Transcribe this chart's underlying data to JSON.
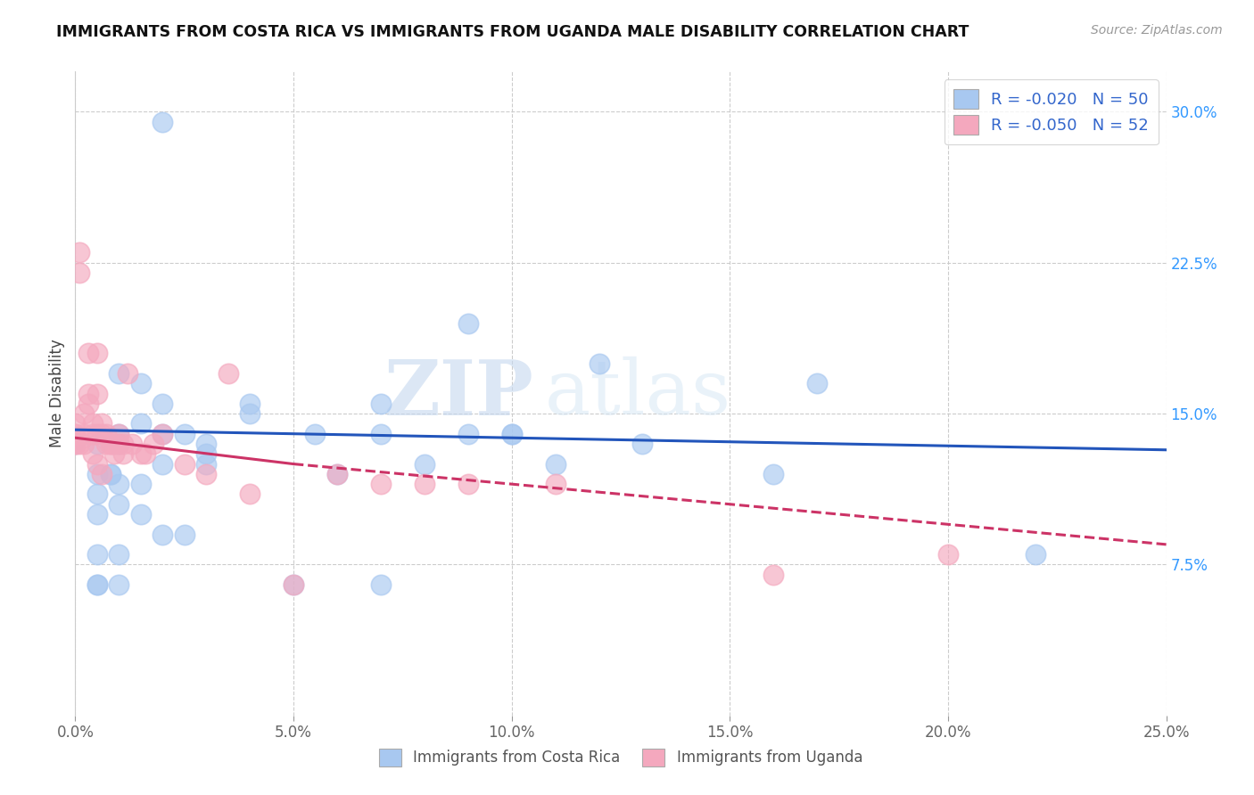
{
  "title": "IMMIGRANTS FROM COSTA RICA VS IMMIGRANTS FROM UGANDA MALE DISABILITY CORRELATION CHART",
  "source": "Source: ZipAtlas.com",
  "ylabel": "Male Disability",
  "xlim": [
    0.0,
    0.25
  ],
  "ylim": [
    0.0,
    0.32
  ],
  "xtick_labels": [
    "0.0%",
    "5.0%",
    "10.0%",
    "15.0%",
    "20.0%",
    "25.0%"
  ],
  "xtick_vals": [
    0.0,
    0.05,
    0.1,
    0.15,
    0.2,
    0.25
  ],
  "ytick_labels": [
    "7.5%",
    "15.0%",
    "22.5%",
    "30.0%"
  ],
  "ytick_vals": [
    0.075,
    0.15,
    0.225,
    0.3
  ],
  "legend_labels": [
    "Immigrants from Costa Rica",
    "Immigrants from Uganda"
  ],
  "R_costa_rica": -0.02,
  "N_costa_rica": 50,
  "R_uganda": -0.05,
  "N_uganda": 52,
  "color_costa_rica": "#a8c8f0",
  "color_uganda": "#f4a8be",
  "trend_color_costa_rica": "#2255bb",
  "trend_color_uganda": "#cc3366",
  "watermark_zip": "ZIP",
  "watermark_atlas": "atlas",
  "background_color": "#ffffff",
  "grid_color": "#cccccc",
  "costa_rica_x": [
    0.02,
    0.09,
    0.12,
    0.17,
    0.0,
    0.01,
    0.02,
    0.005,
    0.01,
    0.015,
    0.005,
    0.008,
    0.04,
    0.055,
    0.07,
    0.09,
    0.1,
    0.005,
    0.01,
    0.008,
    0.015,
    0.02,
    0.03,
    0.06,
    0.08,
    0.11,
    0.16,
    0.005,
    0.01,
    0.015,
    0.02,
    0.025,
    0.03,
    0.05,
    0.07,
    0.005,
    0.01,
    0.015,
    0.02,
    0.025,
    0.03,
    0.005,
    0.01,
    0.22,
    0.005,
    0.01,
    0.13,
    0.1,
    0.07,
    0.04
  ],
  "costa_rica_y": [
    0.295,
    0.195,
    0.175,
    0.165,
    0.135,
    0.135,
    0.14,
    0.135,
    0.14,
    0.145,
    0.12,
    0.12,
    0.155,
    0.14,
    0.155,
    0.14,
    0.14,
    0.11,
    0.115,
    0.12,
    0.115,
    0.125,
    0.125,
    0.12,
    0.125,
    0.125,
    0.12,
    0.1,
    0.105,
    0.1,
    0.09,
    0.09,
    0.13,
    0.065,
    0.065,
    0.065,
    0.17,
    0.165,
    0.155,
    0.14,
    0.135,
    0.08,
    0.08,
    0.08,
    0.065,
    0.065,
    0.135,
    0.14,
    0.14,
    0.15
  ],
  "uganda_x": [
    0.0,
    0.0,
    0.0,
    0.0,
    0.0,
    0.001,
    0.001,
    0.001,
    0.002,
    0.002,
    0.003,
    0.003,
    0.004,
    0.004,
    0.005,
    0.005,
    0.005,
    0.006,
    0.006,
    0.007,
    0.007,
    0.008,
    0.008,
    0.009,
    0.009,
    0.01,
    0.01,
    0.011,
    0.011,
    0.012,
    0.013,
    0.015,
    0.016,
    0.018,
    0.02,
    0.025,
    0.03,
    0.035,
    0.04,
    0.05,
    0.06,
    0.07,
    0.08,
    0.09,
    0.11,
    0.16,
    0.2,
    0.002,
    0.003,
    0.004,
    0.005,
    0.006
  ],
  "uganda_y": [
    0.135,
    0.14,
    0.135,
    0.14,
    0.145,
    0.23,
    0.22,
    0.135,
    0.135,
    0.14,
    0.18,
    0.16,
    0.145,
    0.14,
    0.18,
    0.16,
    0.14,
    0.145,
    0.14,
    0.14,
    0.135,
    0.135,
    0.135,
    0.135,
    0.13,
    0.14,
    0.135,
    0.13,
    0.135,
    0.17,
    0.135,
    0.13,
    0.13,
    0.135,
    0.14,
    0.125,
    0.12,
    0.17,
    0.11,
    0.065,
    0.12,
    0.115,
    0.115,
    0.115,
    0.115,
    0.07,
    0.08,
    0.15,
    0.155,
    0.13,
    0.125,
    0.12
  ],
  "trend_cr_x0": 0.0,
  "trend_cr_x1": 0.25,
  "trend_cr_y0": 0.142,
  "trend_cr_y1": 0.132,
  "trend_ug_solid_x0": 0.0,
  "trend_ug_solid_x1": 0.05,
  "trend_ug_solid_y0": 0.138,
  "trend_ug_solid_y1": 0.125,
  "trend_ug_dash_x0": 0.05,
  "trend_ug_dash_x1": 0.25,
  "trend_ug_dash_y0": 0.125,
  "trend_ug_dash_y1": 0.085
}
